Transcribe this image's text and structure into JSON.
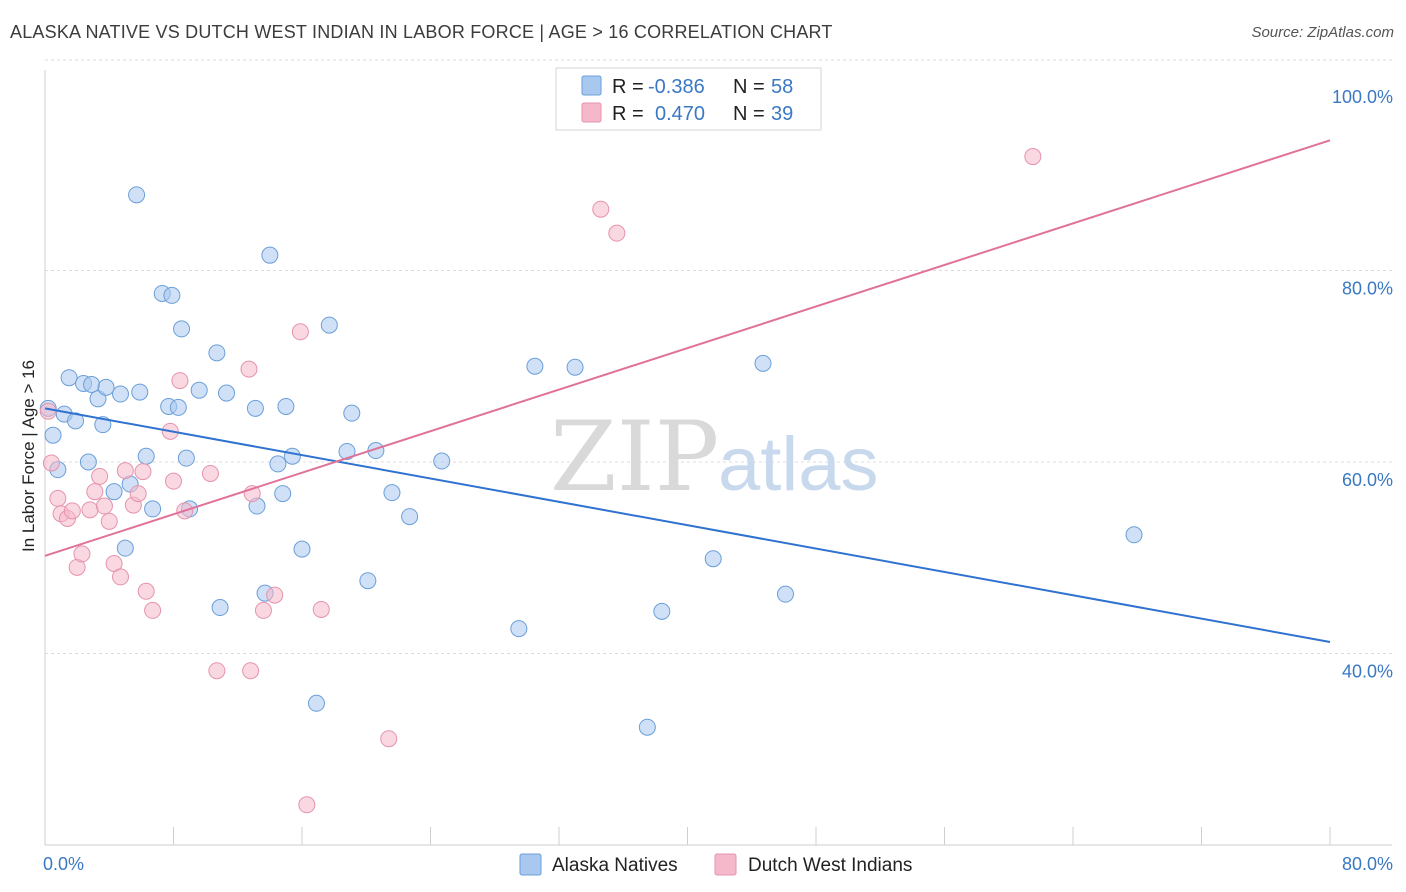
{
  "header": {
    "title": "ALASKA NATIVE VS DUTCH WEST INDIAN IN LABOR FORCE | AGE > 16 CORRELATION CHART",
    "source": "Source: ZipAtlas.com"
  },
  "watermark": {
    "zip": "ZIP",
    "atlas": "atlas"
  },
  "legend": {
    "rows": [
      {
        "r_label": "R = ",
        "r_value": "-0.386",
        "n_label": "N = ",
        "n_value": "58",
        "color": "#a9c8f0"
      },
      {
        "r_label": "R = ",
        "r_value": "0.470",
        "n_label": "N = ",
        "n_value": "39",
        "color": "#f5b8cb"
      }
    ]
  },
  "bottom_legend": {
    "series1": "Alaska Natives",
    "series2": "Dutch West Indians"
  },
  "chart_data": {
    "type": "scatter",
    "title": "ALASKA NATIVE VS DUTCH WEST INDIAN IN LABOR FORCE | AGE > 16 CORRELATION CHART",
    "xlabel": "",
    "ylabel": "In Labor Force | Age > 16",
    "xlim": [
      0,
      80
    ],
    "ylim": [
      20,
      103
    ],
    "x_ticks": [
      "0.0%",
      "80.0%"
    ],
    "y_ticks": [
      {
        "value": 40,
        "label": "40.0%"
      },
      {
        "value": 60,
        "label": "60.0%"
      },
      {
        "value": 80,
        "label": "80.0%"
      },
      {
        "value": 100,
        "label": "100.0%"
      }
    ],
    "grid": true,
    "legend_position": "top-center",
    "series": [
      {
        "name": "Alaska Natives",
        "color": "#a9c8f0",
        "stroke": "#6a9fd8",
        "line_color": "#2f72d0",
        "trend": {
          "x": [
            0,
            80
          ],
          "y": [
            65.6,
            41.2
          ]
        },
        "points": [
          [
            0.2,
            65.6
          ],
          [
            0.5,
            62.8
          ],
          [
            0.8,
            59.2
          ],
          [
            1.2,
            65.0
          ],
          [
            1.5,
            68.8
          ],
          [
            1.9,
            64.3
          ],
          [
            2.4,
            68.2
          ],
          [
            2.7,
            60.0
          ],
          [
            2.9,
            68.1
          ],
          [
            3.3,
            66.6
          ],
          [
            3.6,
            63.9
          ],
          [
            3.8,
            67.8
          ],
          [
            4.3,
            56.9
          ],
          [
            4.7,
            67.1
          ],
          [
            5.0,
            51.0
          ],
          [
            5.3,
            57.7
          ],
          [
            5.7,
            87.9
          ],
          [
            5.9,
            67.3
          ],
          [
            6.3,
            60.6
          ],
          [
            6.7,
            55.1
          ],
          [
            7.3,
            77.6
          ],
          [
            7.7,
            65.8
          ],
          [
            7.9,
            77.4
          ],
          [
            8.3,
            65.7
          ],
          [
            8.5,
            73.9
          ],
          [
            8.8,
            60.4
          ],
          [
            9.0,
            55.1
          ],
          [
            9.6,
            67.5
          ],
          [
            10.7,
            71.4
          ],
          [
            10.9,
            44.8
          ],
          [
            11.3,
            67.2
          ],
          [
            13.1,
            65.6
          ],
          [
            13.2,
            55.4
          ],
          [
            13.7,
            46.3
          ],
          [
            14.0,
            81.6
          ],
          [
            14.5,
            59.8
          ],
          [
            14.8,
            56.7
          ],
          [
            15.0,
            65.8
          ],
          [
            15.4,
            60.6
          ],
          [
            16.0,
            50.9
          ],
          [
            16.9,
            34.8
          ],
          [
            17.7,
            74.3
          ],
          [
            18.8,
            61.1
          ],
          [
            19.1,
            65.1
          ],
          [
            20.1,
            47.6
          ],
          [
            20.6,
            61.2
          ],
          [
            21.6,
            56.8
          ],
          [
            22.7,
            54.3
          ],
          [
            24.7,
            60.1
          ],
          [
            29.5,
            42.6
          ],
          [
            30.5,
            70.0
          ],
          [
            33.0,
            69.9
          ],
          [
            37.5,
            32.3
          ],
          [
            38.4,
            44.4
          ],
          [
            41.6,
            49.9
          ],
          [
            44.7,
            70.3
          ],
          [
            46.1,
            46.2
          ],
          [
            67.8,
            52.4
          ]
        ]
      },
      {
        "name": "Dutch West Indians",
        "color": "#f5b8cb",
        "stroke": "#e593ad",
        "line_color": "#e0729a",
        "trend": {
          "x": [
            0,
            80
          ],
          "y": [
            50.2,
            93.6
          ]
        },
        "points": [
          [
            0.2,
            65.3
          ],
          [
            0.4,
            59.9
          ],
          [
            0.8,
            56.2
          ],
          [
            1.0,
            54.6
          ],
          [
            1.4,
            54.1
          ],
          [
            1.7,
            54.9
          ],
          [
            2.0,
            49.0
          ],
          [
            2.3,
            50.4
          ],
          [
            2.8,
            55.0
          ],
          [
            3.1,
            56.9
          ],
          [
            3.4,
            58.5
          ],
          [
            3.7,
            55.4
          ],
          [
            4.0,
            53.8
          ],
          [
            4.3,
            49.4
          ],
          [
            4.7,
            48.0
          ],
          [
            5.0,
            59.1
          ],
          [
            5.5,
            55.5
          ],
          [
            5.8,
            56.7
          ],
          [
            6.1,
            59.0
          ],
          [
            6.3,
            46.5
          ],
          [
            6.7,
            44.5
          ],
          [
            7.8,
            63.2
          ],
          [
            8.0,
            58.0
          ],
          [
            8.4,
            68.5
          ],
          [
            8.7,
            54.9
          ],
          [
            10.3,
            58.8
          ],
          [
            10.7,
            38.2
          ],
          [
            12.7,
            69.7
          ],
          [
            12.8,
            38.2
          ],
          [
            12.9,
            56.7
          ],
          [
            13.6,
            44.5
          ],
          [
            14.3,
            46.1
          ],
          [
            15.9,
            73.6
          ],
          [
            16.3,
            24.2
          ],
          [
            17.2,
            44.6
          ],
          [
            21.4,
            31.1
          ],
          [
            34.6,
            86.4
          ],
          [
            35.6,
            83.9
          ],
          [
            61.5,
            91.9
          ]
        ]
      }
    ]
  }
}
